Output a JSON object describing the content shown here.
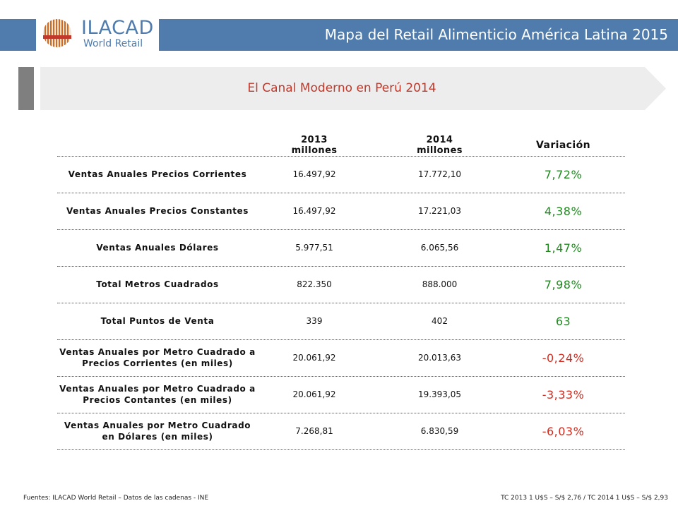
{
  "header": {
    "logo_title": "ILACAD",
    "logo_subtitle": "World Retail",
    "title": "Mapa del Retail Alimenticio América Latina 2015",
    "band_color": "#4f7cac"
  },
  "banner": {
    "title": "El Canal Moderno en Perú 2014"
  },
  "table": {
    "headers": {
      "y2013": "2013\nmillones",
      "y2014": "2014\nmillones",
      "variation": "Variación"
    },
    "rows": [
      {
        "label": "Ventas Anuales Precios Corrientes",
        "v2013": "16.497,92",
        "v2014": "17.772,10",
        "variation": "7,72%",
        "trend": "pos"
      },
      {
        "label": "Ventas Anuales Precios Constantes",
        "v2013": "16.497,92",
        "v2014": "17.221,03",
        "variation": "4,38%",
        "trend": "pos"
      },
      {
        "label": "Ventas Anuales Dólares",
        "v2013": "5.977,51",
        "v2014": "6.065,56",
        "variation": "1,47%",
        "trend": "pos"
      },
      {
        "label": "Total Metros Cuadrados",
        "v2013": "822.350",
        "v2014": "888.000",
        "variation": "7,98%",
        "trend": "pos"
      },
      {
        "label": "Total Puntos de Venta",
        "v2013": "339",
        "v2014": "402",
        "variation": "63",
        "trend": "pos"
      },
      {
        "label": "Ventas Anuales por Metro Cuadrado a Precios Corrientes (en miles)",
        "v2013": "20.061,92",
        "v2014": "20.013,63",
        "variation": "-0,24%",
        "trend": "neg"
      },
      {
        "label": "Ventas Anuales por Metro Cuadrado a Precios Contantes (en miles)",
        "v2013": "20.061,92",
        "v2014": "19.393,05",
        "variation": "-3,33%",
        "trend": "neg"
      },
      {
        "label": "Ventas Anuales por Metro Cuadrado en Dólares (en miles)",
        "v2013": "7.268,81",
        "v2014": "6.830,59",
        "variation": "-6,03%",
        "trend": "neg"
      }
    ]
  },
  "footer": {
    "sources": "Fuentes: ILACAD World Retail – Datos de las cadenas - INE",
    "exchange": "TC 2013 1 U$S – S/$ 2,76 / TC 2014 1 U$S – S/$ 2,93"
  },
  "colors": {
    "positive": "#1e8a1e",
    "negative": "#d12b1f",
    "banner_title": "#c0392b"
  }
}
